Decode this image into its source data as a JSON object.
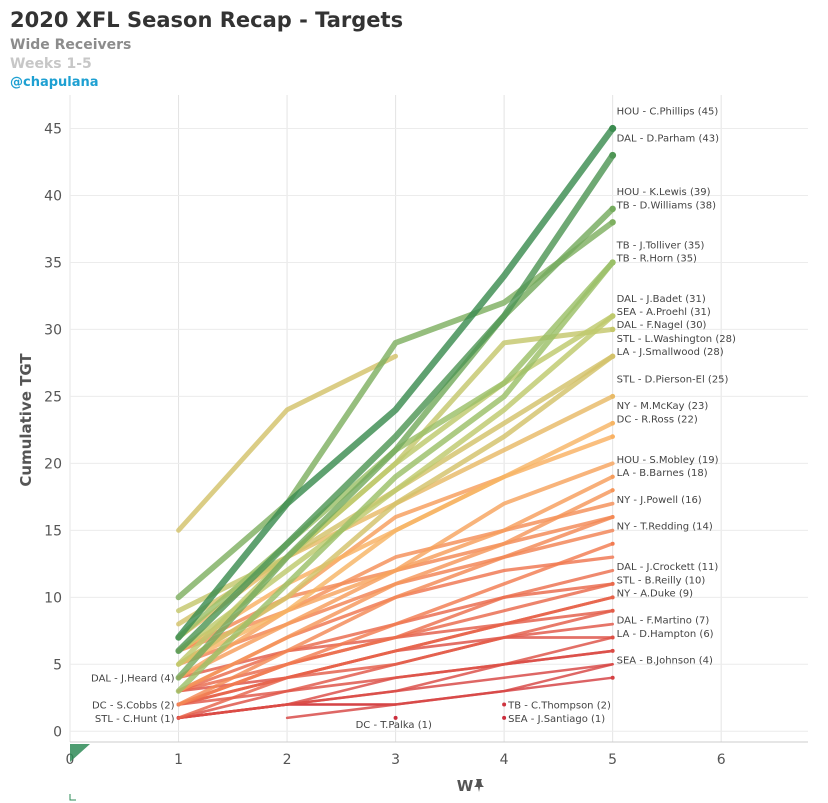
{
  "header": {
    "title": "2020 XFL Season Recap - Targets",
    "subtitle": "Wide Receivers",
    "weeks": "Weeks 1-5",
    "handle": "@chapulana"
  },
  "icons": {
    "pin": "pin-icon",
    "corner": "corner-triangle-icon"
  },
  "chart_data": {
    "type": "line",
    "xlabel": "W",
    "ylabel": "Cumulative TGT",
    "xlim": [
      0,
      6.8
    ],
    "ylim": [
      -0.8,
      47.5
    ],
    "xticks": [
      0,
      1,
      2,
      3,
      4,
      5,
      6
    ],
    "yticks": [
      0,
      5,
      10,
      15,
      20,
      25,
      30,
      35,
      40,
      45
    ],
    "grid": true,
    "color_scale": {
      "low": "#c8283c",
      "mid_low": "#f07850",
      "mid": "#fab464",
      "mid_high": "#b4cd6e",
      "high": "#3c8c50"
    },
    "series": [
      {
        "name": "HOU - C.Phillips",
        "label": "HOU - C.Phillips (45)",
        "x": [
          1,
          2,
          3,
          4,
          5
        ],
        "y": [
          7,
          17,
          24,
          34,
          45
        ]
      },
      {
        "name": "DAL - D.Parham",
        "label": "DAL - D.Parham (43)",
        "x": [
          1,
          2,
          3,
          4,
          5
        ],
        "y": [
          6,
          14,
          22,
          31,
          43
        ]
      },
      {
        "name": "HOU - K.Lewis",
        "label": "HOU - K.Lewis (39)",
        "x": [
          1,
          2,
          3,
          4,
          5
        ],
        "y": [
          4,
          13,
          21,
          31,
          39
        ]
      },
      {
        "name": "TB - D.Williams",
        "label": "TB - D.Williams (38)",
        "x": [
          1,
          2,
          3,
          4,
          5
        ],
        "y": [
          10,
          17,
          29,
          32,
          38
        ]
      },
      {
        "name": "TB - J.Tolliver",
        "label": "TB - J.Tolliver (35)",
        "x": [
          1,
          2,
          3,
          4,
          5
        ],
        "y": [
          7,
          14,
          21,
          26,
          35
        ]
      },
      {
        "name": "TB - R.Horn",
        "label": "TB - R.Horn (35)",
        "x": [
          1,
          2,
          3,
          4,
          5
        ],
        "y": [
          3,
          11,
          19,
          25,
          35
        ]
      },
      {
        "name": "DAL - J.Badet",
        "label": "DAL - J.Badet (31)",
        "x": [
          1,
          2,
          3,
          4,
          5
        ],
        "y": [
          5,
          13,
          20,
          26,
          31
        ]
      },
      {
        "name": "SEA - A.Proehl",
        "label": "SEA - A.Proehl (31)",
        "x": [
          1,
          2,
          3,
          4,
          5
        ],
        "y": [
          6,
          12,
          18,
          24,
          31
        ]
      },
      {
        "name": "DAL - F.Nagel",
        "label": "DAL - F.Nagel (30)",
        "x": [
          1,
          2,
          3,
          4,
          5
        ],
        "y": [
          9,
          13,
          20,
          29,
          30
        ]
      },
      {
        "name": "STL - L.Washington",
        "label": "STL - L.Washington (28)",
        "x": [
          1,
          2,
          3,
          4,
          5
        ],
        "y": [
          8,
          13,
          18,
          23,
          28
        ]
      },
      {
        "name": "LA - J.Smallwood",
        "label": "LA - J.Smallwood (28)",
        "x": [
          1,
          2,
          3,
          4,
          5
        ],
        "y": [
          5,
          10,
          17,
          22,
          28
        ]
      },
      {
        "name": "STL - D.Pierson-El",
        "label": "STL - D.Pierson-El (25)",
        "x": [
          1,
          2,
          3,
          4,
          5
        ],
        "y": [
          7,
          13,
          17,
          21,
          25
        ]
      },
      {
        "name": "NY - M.McKay",
        "label": "NY - M.McKay (23)",
        "x": [
          1,
          2,
          3,
          4,
          5
        ],
        "y": [
          5,
          9,
          15,
          19,
          23
        ]
      },
      {
        "name": "DC - R.Ross",
        "label": "DC - R.Ross (22)",
        "x": [
          1,
          2,
          3,
          4,
          5
        ],
        "y": [
          6,
          11,
          15,
          19,
          22
        ]
      },
      {
        "name": "HOU - S.Mobley",
        "label": "HOU - S.Mobley (19)",
        "x": [
          1,
          2,
          3,
          4,
          5
        ],
        "y": [
          4,
          8,
          12,
          15,
          19
        ]
      },
      {
        "name": "LA - B.Barnes",
        "label": "LA - B.Barnes (18)",
        "x": [
          1,
          2,
          3,
          4,
          5
        ],
        "y": [
          3,
          7,
          11,
          14,
          18
        ]
      },
      {
        "name": "NY - J.Powell",
        "label": "NY - J.Powell (16)",
        "x": [
          1,
          2,
          3,
          4,
          5
        ],
        "y": [
          6,
          10,
          12,
          14,
          16
        ]
      },
      {
        "name": "NY - T.Redding",
        "label": "NY - T.Redding (14)",
        "x": [
          1,
          2,
          3,
          4,
          5
        ],
        "y": [
          2,
          5,
          8,
          11,
          14
        ]
      },
      {
        "name": "DAL - J.Crockett",
        "label": "DAL - J.Crockett (11)",
        "x": [
          1,
          2,
          3,
          4,
          5
        ],
        "y": [
          3,
          5,
          7,
          9,
          11
        ]
      },
      {
        "name": "STL - B.Reilly",
        "label": "STL - B.Reilly (10)",
        "x": [
          1,
          2,
          3,
          4,
          5
        ],
        "y": [
          2,
          4,
          6,
          8,
          10
        ]
      },
      {
        "name": "NY - A.Duke",
        "label": "NY - A.Duke (9)",
        "x": [
          1,
          2,
          3,
          4,
          5
        ],
        "y": [
          2,
          4,
          5,
          7,
          9
        ]
      },
      {
        "name": "DAL - F.Martino",
        "label": "DAL - F.Martino (7)",
        "x": [
          1,
          2,
          3,
          4,
          5
        ],
        "y": [
          1,
          3,
          4,
          5,
          7
        ]
      },
      {
        "name": "LA - D.Hampton",
        "label": "LA - D.Hampton (6)",
        "x": [
          1,
          2,
          3,
          4,
          5
        ],
        "y": [
          1,
          2,
          3,
          5,
          6
        ]
      },
      {
        "name": "SEA - B.Johnson",
        "label": "SEA - B.Johnson (4)",
        "x": [
          1,
          2,
          3,
          4,
          5
        ],
        "y": [
          1,
          2,
          2,
          3,
          4
        ]
      },
      {
        "name": "DAL - J.Heard",
        "label": "DAL - J.Heard (4)",
        "x": [
          1
        ],
        "y": [
          4
        ]
      },
      {
        "name": "DC - S.Cobbs",
        "label": "DC - S.Cobbs (2)",
        "x": [
          1
        ],
        "y": [
          2
        ]
      },
      {
        "name": "STL - C.Hunt",
        "label": "STL - C.Hunt (1)",
        "x": [
          1
        ],
        "y": [
          1
        ]
      },
      {
        "name": "DC - T.Palka",
        "label": "DC - T.Palka (1)",
        "x": [
          3
        ],
        "y": [
          1
        ]
      },
      {
        "name": "TB - C.Thompson",
        "label": "TB - C.Thompson (2)",
        "x": [
          4
        ],
        "y": [
          2
        ]
      },
      {
        "name": "SEA - J.Santiago",
        "label": "SEA - J.Santiago (1)",
        "x": [
          4
        ],
        "y": [
          1
        ]
      },
      {
        "name": "",
        "x": [
          1,
          2,
          3
        ],
        "y": [
          15,
          24,
          28
        ]
      },
      {
        "name": "",
        "x": [
          1,
          2,
          3,
          4,
          5
        ],
        "y": [
          6,
          9,
          13,
          15,
          17
        ]
      },
      {
        "name": "",
        "x": [
          1,
          2,
          3,
          4,
          5
        ],
        "y": [
          4,
          9,
          12,
          17,
          20
        ]
      },
      {
        "name": "",
        "x": [
          1,
          2,
          3,
          4,
          5
        ],
        "y": [
          5,
          8,
          11,
          13,
          15
        ]
      },
      {
        "name": "",
        "x": [
          1,
          2,
          3,
          4,
          5
        ],
        "y": [
          2,
          6,
          10,
          13,
          16
        ]
      },
      {
        "name": "",
        "x": [
          1,
          2,
          3,
          4,
          5
        ],
        "y": [
          3,
          7,
          10,
          12,
          13
        ]
      },
      {
        "name": "",
        "x": [
          1,
          2,
          3,
          4,
          5
        ],
        "y": [
          2,
          5,
          7,
          10,
          12
        ]
      },
      {
        "name": "",
        "x": [
          1,
          2,
          3,
          4
        ],
        "y": [
          5,
          10,
          16,
          19
        ]
      },
      {
        "name": "",
        "x": [
          1,
          2,
          3,
          4,
          5
        ],
        "y": [
          3,
          6,
          8,
          10,
          11
        ]
      },
      {
        "name": "",
        "x": [
          1,
          2,
          3,
          4,
          5
        ],
        "y": [
          1,
          4,
          6,
          8,
          10
        ]
      },
      {
        "name": "",
        "x": [
          1,
          2,
          3,
          4,
          5
        ],
        "y": [
          2,
          3,
          5,
          7,
          8
        ]
      },
      {
        "name": "",
        "x": [
          1,
          2,
          3,
          4,
          5
        ],
        "y": [
          1,
          2,
          4,
          5,
          6
        ]
      },
      {
        "name": "",
        "x": [
          1,
          2,
          3,
          4,
          5
        ],
        "y": [
          1,
          2,
          3,
          4,
          5
        ]
      },
      {
        "name": "",
        "x": [
          1,
          2,
          3
        ],
        "y": [
          1,
          2,
          2
        ]
      },
      {
        "name": "",
        "x": [
          2,
          3,
          4,
          5
        ],
        "y": [
          1,
          2,
          3,
          5
        ]
      },
      {
        "name": "",
        "x": [
          1,
          2,
          3,
          4,
          5
        ],
        "y": [
          4,
          6,
          7,
          8,
          9
        ]
      },
      {
        "name": "",
        "x": [
          1,
          2,
          3,
          4,
          5
        ],
        "y": [
          3,
          4,
          6,
          7,
          7
        ]
      }
    ]
  }
}
